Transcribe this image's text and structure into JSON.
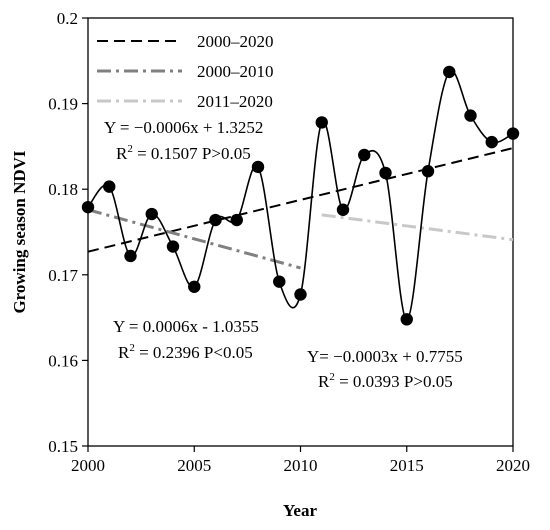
{
  "chart_data": {
    "type": "line",
    "xlabel": "Year",
    "ylabel": "Growing season NDVI",
    "xlim": [
      2000,
      2020
    ],
    "ylim": [
      0.15,
      0.2
    ],
    "x_ticks": [
      "2000",
      "2005",
      "2010",
      "2015",
      "2020"
    ],
    "y_ticks": [
      "0.15",
      "0.16",
      "0.17",
      "0.18",
      "0.19",
      "0.2"
    ],
    "grid": false,
    "legend_position": "top-left",
    "series": [
      {
        "kind": "observed",
        "style": "smooth-line-with-markers",
        "color": "#000000",
        "x": [
          2000,
          2001,
          2002,
          2003,
          2004,
          2005,
          2006,
          2007,
          2008,
          2009,
          2010,
          2011,
          2012,
          2013,
          2014,
          2015,
          2016,
          2017,
          2018,
          2019,
          2020
        ],
        "y": [
          0.1779,
          0.1803,
          0.1722,
          0.1771,
          0.1733,
          0.1686,
          0.1764,
          0.1764,
          0.1826,
          0.1692,
          0.1677,
          0.1878,
          0.1776,
          0.184,
          0.1819,
          0.1648,
          0.1821,
          0.1937,
          0.1886,
          0.1855,
          0.1865
        ]
      },
      {
        "name": "2000–2020",
        "kind": "trend",
        "style": "dashed",
        "color": "#000000",
        "x": [
          2000,
          2020
        ],
        "y": [
          0.1727,
          0.1848
        ]
      },
      {
        "name": "2000–2010",
        "kind": "trend",
        "style": "dashdot",
        "color": "#808080",
        "x": [
          2000,
          2010
        ],
        "y": [
          0.1776,
          0.1708
        ]
      },
      {
        "name": "2011–2020",
        "kind": "trend",
        "style": "dashdot",
        "color": "#c8c8c8",
        "x": [
          2011,
          2020
        ],
        "y": [
          0.177,
          0.1741
        ]
      }
    ],
    "annotations": [
      {
        "eq": "Y = −0.0006x + 1.3252",
        "r2_prefix": "R",
        "r2_sup": "2",
        "r2_rest": " = 0.1507 P>0.05"
      },
      {
        "eq": "Y = 0.0006x - 1.0355",
        "r2_prefix": "R",
        "r2_sup": "2",
        "r2_rest": " = 0.2396 P<0.05"
      },
      {
        "eq": "Y= −0.0003x + 0.7755",
        "r2_prefix": "R",
        "r2_sup": "2",
        "r2_rest": " = 0.0393 P>0.05"
      }
    ]
  }
}
